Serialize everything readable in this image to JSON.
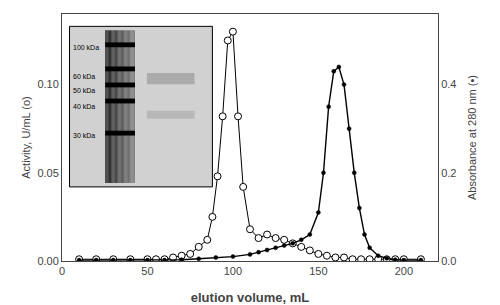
{
  "chart_data": {
    "type": "line",
    "xlabel": "elution volume, mL",
    "ylabel": "Activity, U/mL (o)",
    "y2label": "Absorbance at 280 nm (•)",
    "series": [
      {
        "x": [
          10,
          20,
          30,
          40,
          50,
          55,
          60,
          65,
          70,
          75,
          80,
          85,
          88,
          91,
          94,
          97,
          100,
          103,
          106,
          110,
          115,
          120,
          125,
          130,
          135,
          140,
          145,
          150,
          155,
          160,
          165,
          170,
          175,
          180,
          185,
          190,
          195,
          200,
          210
        ],
        "values": [
          0.001,
          0.001,
          0.001,
          0.001,
          0.001,
          0.001,
          0.001,
          0.002,
          0.003,
          0.004,
          0.008,
          0.012,
          0.025,
          0.048,
          0.082,
          0.125,
          0.13,
          0.082,
          0.042,
          0.018,
          0.013,
          0.015,
          0.013,
          0.012,
          0.01,
          0.008,
          0.006,
          0.004,
          0.003,
          0.002,
          0.002,
          0.001,
          0.001,
          0.001,
          0.001,
          0.001,
          0.001,
          0.001,
          0.001
        ],
        "color": "black",
        "marker": "open",
        "line_style": "solid"
      },
      {
        "x": [
          10,
          20,
          30,
          40,
          50,
          60,
          70,
          80,
          90,
          100,
          110,
          115,
          120,
          125,
          130,
          135,
          140,
          145,
          150,
          153,
          156,
          159,
          162,
          165,
          168,
          171,
          174,
          177,
          180,
          185,
          190,
          195,
          200,
          210
        ],
        "values": [
          0.002,
          0.002,
          0.002,
          0.002,
          0.002,
          0.002,
          0.003,
          0.005,
          0.008,
          0.01,
          0.015,
          0.02,
          0.025,
          0.03,
          0.035,
          0.04,
          0.048,
          0.06,
          0.11,
          0.2,
          0.35,
          0.43,
          0.44,
          0.4,
          0.3,
          0.2,
          0.12,
          0.06,
          0.03,
          0.012,
          0.006,
          0.003,
          0.002,
          0.002
        ],
        "color": "black",
        "marker": "filled",
        "line_style": "solid",
        "axis": "y2"
      }
    ],
    "xlim": [
      0,
      220
    ],
    "xticks": [
      0,
      50,
      100,
      150,
      200
    ],
    "ylim": [
      0,
      0.14
    ],
    "yticks": [
      {
        "value": 0.0,
        "label": "0.00"
      },
      0.05,
      {
        "value": 0.1,
        "label": "0.10"
      }
    ],
    "y2lim": [
      0,
      0.56
    ],
    "y2ticks": [
      {
        "value": 0.0,
        "label": "0.0"
      },
      0.2,
      0.4
    ],
    "annotations": [
      "100 kDa",
      "60 kDa",
      "50 kDa",
      "40 kDa",
      "30 kDa"
    ],
    "grid": false
  }
}
